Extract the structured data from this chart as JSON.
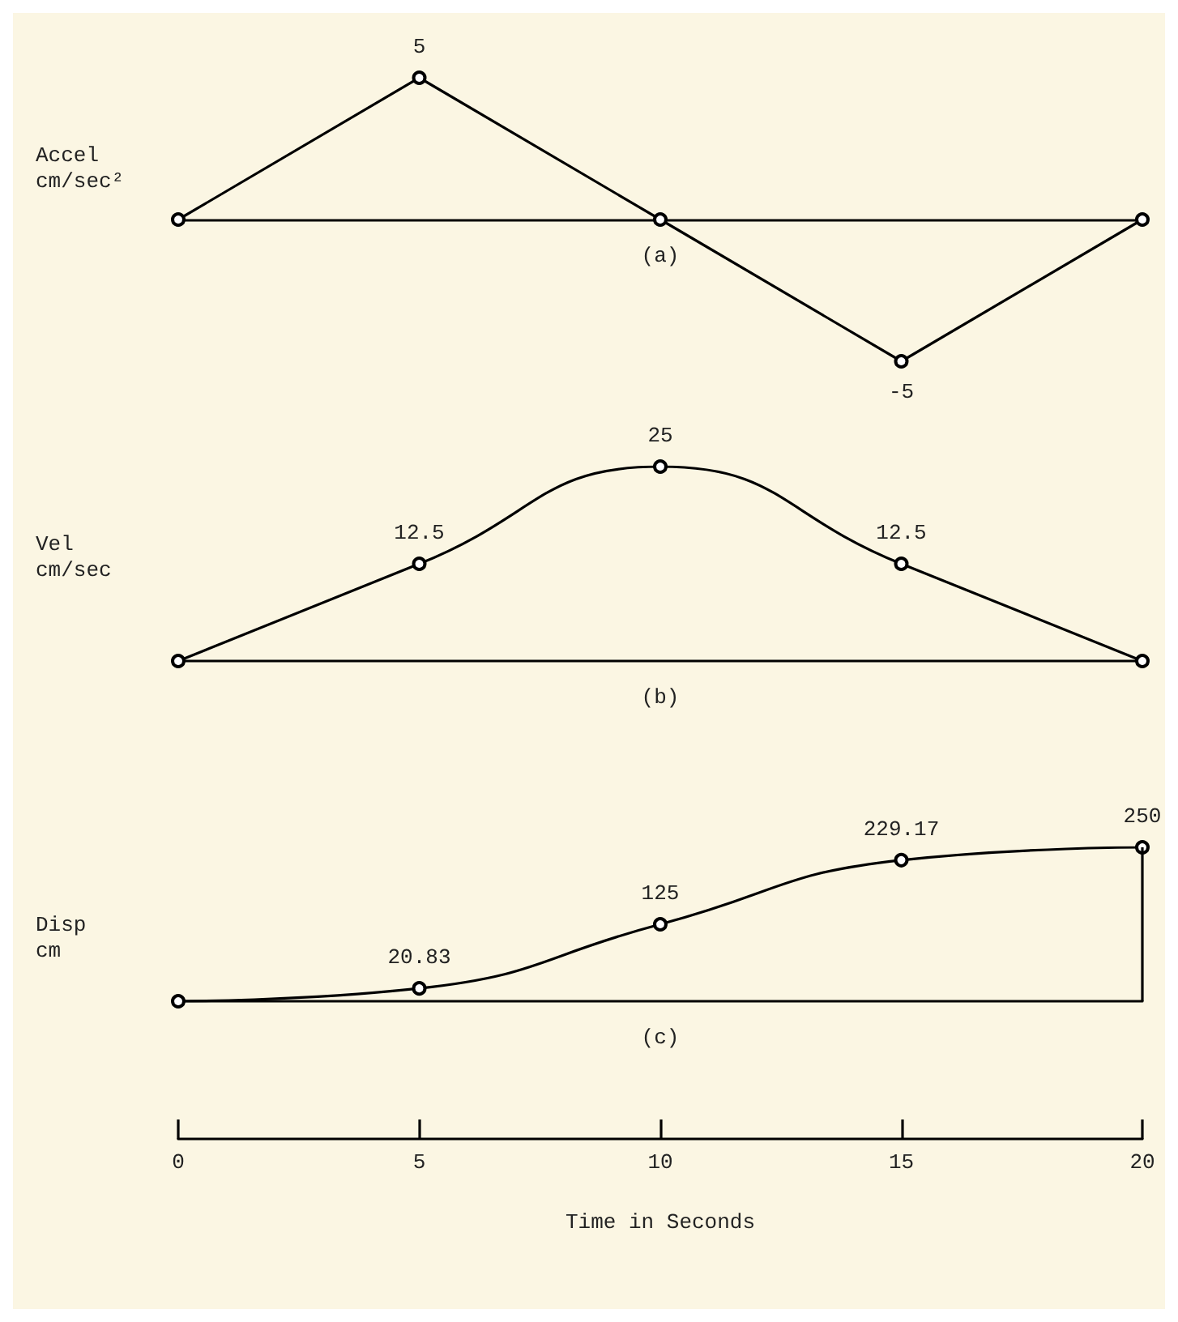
{
  "chart_data": [
    {
      "type": "line",
      "ylabel": "Accel cm/sec²",
      "annotations": [
        "(a)"
      ],
      "x": [
        0,
        5,
        10,
        15,
        20
      ],
      "xlim": [
        0,
        20
      ],
      "tick_labels": false,
      "marker": "circle",
      "line_style": "solid",
      "series": [
        {
          "color": "#000000",
          "values": [
            0,
            5,
            0,
            -5,
            0
          ],
          "value_labels": [
            null,
            "5",
            null,
            "-5",
            null
          ]
        }
      ]
    },
    {
      "type": "line",
      "ylabel": "Vel cm/sec",
      "annotations": [
        "(b)"
      ],
      "x": [
        0,
        5,
        10,
        15,
        20
      ],
      "xlim": [
        0,
        20
      ],
      "tick_labels": false,
      "marker": "circle",
      "line_style": "solid",
      "series": [
        {
          "color": "#000000",
          "values": [
            0,
            12.5,
            25,
            12.5,
            0
          ],
          "value_labels": [
            null,
            "12.5",
            "25",
            "12.5",
            null
          ]
        }
      ]
    },
    {
      "type": "line",
      "ylabel": "Disp cm",
      "xlabel": "Time in Seconds",
      "annotations": [
        "(c)"
      ],
      "x": [
        0,
        5,
        10,
        15,
        20
      ],
      "xlim": [
        0,
        20
      ],
      "xticks": [
        0,
        5,
        10,
        15,
        20
      ],
      "tick_labels": "x",
      "marker": "circle",
      "line_style": "solid",
      "ref_lines": [
        {
          "axis": "x",
          "value": 20,
          "color": "#000000"
        }
      ],
      "series": [
        {
          "color": "#000000",
          "values": [
            0,
            20.83,
            125,
            229.17,
            250
          ],
          "value_labels": [
            null,
            "20.83",
            "125",
            "229.17",
            "250"
          ]
        }
      ]
    }
  ]
}
